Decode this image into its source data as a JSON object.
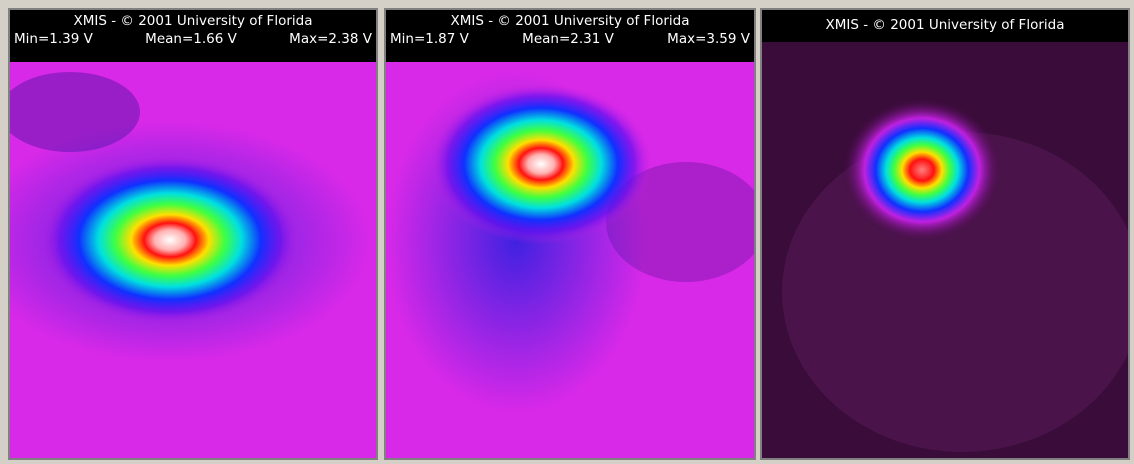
{
  "panels": [
    {
      "title": "XMIS - © 2001 University of Florida",
      "stats": [
        "Min=1.39 V",
        "Mean=1.66 V",
        "Max=2.38 V"
      ]
    },
    {
      "title": "XMIS - © 2001 University of Florida",
      "stats": [
        "Min=1.87 V",
        "Mean=2.31 V",
        "Max=3.59 V"
      ]
    },
    {
      "title": "XMIS - © 2001 University of Florida"
    }
  ]
}
